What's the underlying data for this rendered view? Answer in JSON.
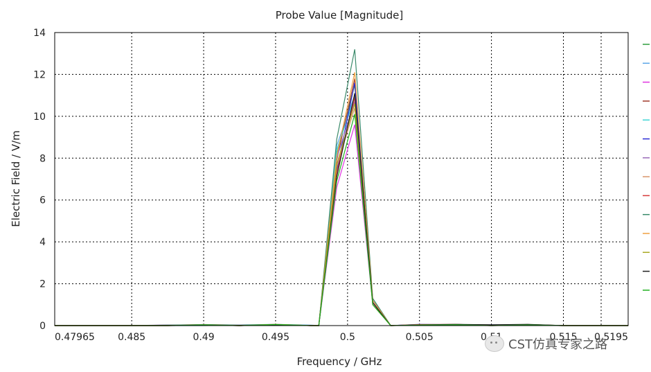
{
  "chart_data": {
    "type": "line",
    "title": "Probe Value [Magnitude]",
    "xlabel": "Frequency / GHz",
    "ylabel": "Electric Field / V/m",
    "xlim": [
      0.47965,
      0.5195
    ],
    "ylim": [
      0,
      14
    ],
    "x_ticks": [
      0.47965,
      0.485,
      0.49,
      0.495,
      0.5,
      0.505,
      0.51,
      0.515,
      0.5195
    ],
    "x_tick_labels": [
      "0.47965",
      "0.485",
      "0.49",
      "0.495",
      "0.5",
      "0.505",
      "0.51",
      "0.515",
      "0.5195"
    ],
    "y_ticks": [
      0,
      2,
      4,
      6,
      8,
      10,
      12,
      14
    ],
    "y_tick_labels": [
      "0",
      "2",
      "4",
      "6",
      "8",
      "10",
      "12",
      "14"
    ],
    "grid": true,
    "legend": "right",
    "x": [
      0.47965,
      0.485,
      0.4875,
      0.49,
      0.4925,
      0.495,
      0.4975,
      0.498,
      0.49925,
      0.5005,
      0.50175,
      0.503,
      0.505,
      0.5075,
      0.51,
      0.5125,
      0.515,
      0.5195
    ],
    "series": [
      {
        "color": "#2e9e3e",
        "values": [
          0,
          0,
          0,
          0.04,
          0,
          0.05,
          0,
          0,
          8.2,
          11.5,
          1.2,
          0,
          0.02,
          0.04,
          0,
          0.05,
          0,
          0
        ]
      },
      {
        "color": "#5aa6e8",
        "values": [
          0,
          0,
          0,
          0,
          0.03,
          0.06,
          0.02,
          0,
          8.6,
          11.0,
          1.1,
          0,
          0.05,
          0.06,
          0,
          0.03,
          0,
          0
        ]
      },
      {
        "color": "#e033e0",
        "values": [
          0,
          0,
          0.02,
          0.05,
          0.02,
          0.04,
          0,
          0,
          6.6,
          9.6,
          1.0,
          0,
          0.03,
          0.04,
          0.02,
          0.04,
          0,
          0
        ]
      },
      {
        "color": "#a0382a",
        "values": [
          0,
          0,
          0,
          0.03,
          0,
          0.04,
          0,
          0,
          7.9,
          11.8,
          1.2,
          0,
          0.03,
          0.05,
          0.03,
          0.04,
          0,
          0
        ]
      },
      {
        "color": "#3fd6d6",
        "values": [
          0,
          0,
          0,
          0.02,
          0,
          0.05,
          0,
          0,
          8.4,
          10.9,
          1.1,
          0,
          0.02,
          0.03,
          0,
          0.02,
          0,
          0
        ]
      },
      {
        "color": "#2a2ad6",
        "values": [
          0,
          0,
          0,
          0.04,
          0,
          0.03,
          0,
          0,
          7.4,
          11.6,
          1.2,
          0,
          0.06,
          0.04,
          0.04,
          0.03,
          0,
          0
        ]
      },
      {
        "color": "#9a6ab8",
        "values": [
          0,
          0,
          0.03,
          0.02,
          0,
          0.06,
          0,
          0,
          8.0,
          10.7,
          1.1,
          0,
          0.04,
          0.02,
          0,
          0.02,
          0,
          0
        ]
      },
      {
        "color": "#d8946a",
        "values": [
          0,
          0,
          0,
          0.05,
          0,
          0.04,
          0,
          0,
          7.6,
          10.4,
          1.0,
          0,
          0.02,
          0.05,
          0.03,
          0.03,
          0,
          0
        ]
      },
      {
        "color": "#d63a3a",
        "values": [
          0,
          0,
          0,
          0.02,
          0,
          0.03,
          0,
          0,
          7.3,
          10.9,
          1.1,
          0,
          0.05,
          0.06,
          0,
          0.05,
          0,
          0
        ]
      },
      {
        "color": "#3a8a6a",
        "values": [
          0,
          0,
          0.02,
          0.05,
          0.02,
          0.05,
          0,
          0,
          8.9,
          13.2,
          1.3,
          0,
          0.03,
          0.04,
          0.02,
          0.04,
          0,
          0
        ]
      },
      {
        "color": "#f0a040",
        "values": [
          0,
          0,
          0,
          0.03,
          0,
          0.04,
          0,
          0,
          8.1,
          12.1,
          1.2,
          0,
          0.02,
          0.03,
          0,
          0.02,
          0,
          0
        ]
      },
      {
        "color": "#a8a820",
        "values": [
          0,
          0,
          0,
          0.04,
          0,
          0.06,
          0,
          0,
          7.7,
          10.6,
          1.0,
          0,
          0.04,
          0.05,
          0.03,
          0.03,
          0,
          0
        ]
      },
      {
        "color": "#202020",
        "values": [
          0,
          0,
          0,
          0.02,
          0,
          0.03,
          0,
          0,
          7.1,
          11.1,
          1.1,
          0,
          0.03,
          0.06,
          0.04,
          0.06,
          0,
          0
        ]
      },
      {
        "color": "#20b020",
        "values": [
          0,
          0,
          0,
          0.03,
          0,
          0.05,
          0,
          0,
          6.9,
          10.1,
          1.0,
          0,
          0.02,
          0.04,
          0,
          0.03,
          0,
          0
        ]
      }
    ]
  },
  "watermark": {
    "text": "CST仿真专家之路",
    "icon": "wechat-icon"
  }
}
